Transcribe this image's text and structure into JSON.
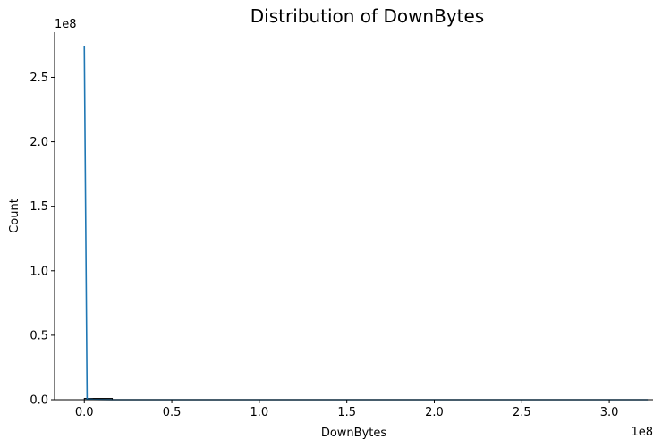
{
  "chart_data": {
    "type": "line",
    "title": "Distribution of DownBytes",
    "xlabel": "DownBytes",
    "ylabel": "Count",
    "x_offset_label": "1e8",
    "y_offset_label": "1e8",
    "xlim": [
      -0.17,
      3.25
    ],
    "ylim": [
      0,
      2.85
    ],
    "x_ticks": [
      0.0,
      0.5,
      1.0,
      1.5,
      2.0,
      2.5,
      3.0
    ],
    "x_tick_labels": [
      "0.0",
      "0.5",
      "1.0",
      "1.5",
      "2.0",
      "2.5",
      "3.0"
    ],
    "y_ticks": [
      0.0,
      0.5,
      1.0,
      1.5,
      2.0,
      2.5
    ],
    "y_tick_labels": [
      "0.0",
      "0.5",
      "1.0",
      "1.5",
      "2.0",
      "2.5"
    ],
    "series": [
      {
        "color": "#1f77b4",
        "x": [
          0.0,
          0.016,
          0.05,
          0.1,
          0.16,
          0.2,
          0.5,
          1.0,
          1.5,
          2.0,
          2.5,
          3.0,
          3.22
        ],
        "y": [
          2.74,
          0.005,
          0.002,
          0.001,
          0.0,
          0.0,
          0.0,
          0.0,
          0.0,
          0.0,
          0.0,
          0.0,
          0.0
        ]
      }
    ],
    "bars": {
      "color": "#1f77b4",
      "edges": [
        0.0,
        0.16
      ],
      "values": [
        0.01
      ]
    },
    "grid": false,
    "legend": "none"
  }
}
